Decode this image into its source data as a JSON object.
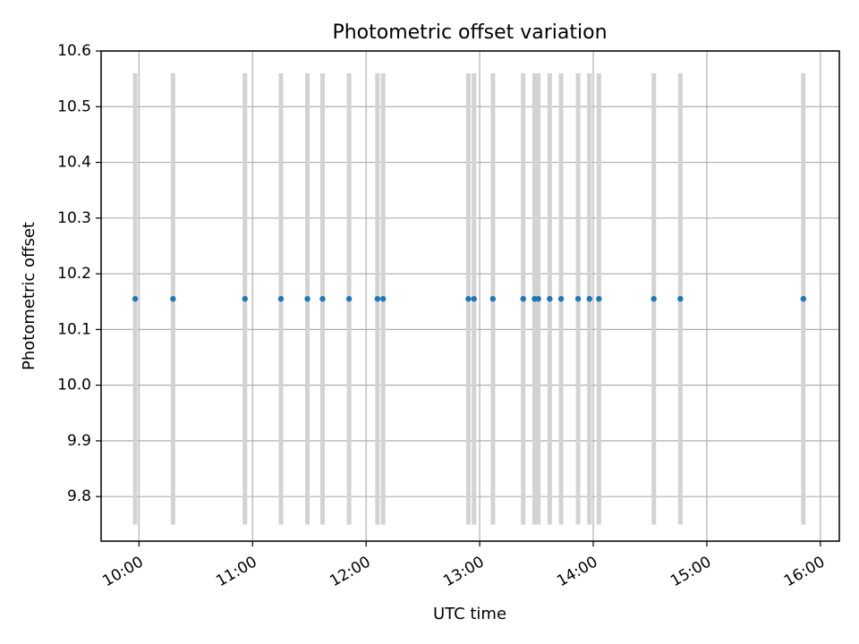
{
  "chart_data": {
    "type": "scatter",
    "title": "Photometric offset variation",
    "xlabel": "UTC time",
    "ylabel": "Photometric offset",
    "xlim": [
      "09:40",
      "16:10"
    ],
    "ylim": [
      9.72,
      10.6
    ],
    "x_ticks": [
      "10:00",
      "11:00",
      "12:00",
      "13:00",
      "14:00",
      "15:00",
      "16:00"
    ],
    "y_ticks": [
      9.8,
      9.9,
      10.0,
      10.1,
      10.2,
      10.3,
      10.4,
      10.5,
      10.6
    ],
    "y_tick_labels": [
      "9.8",
      "9.9",
      "10.0",
      "10.1",
      "10.2",
      "10.3",
      "10.4",
      "10.5",
      "10.6"
    ],
    "grid": true,
    "points": {
      "x": [
        "09:58",
        "10:18",
        "10:56",
        "11:15",
        "11:29",
        "11:37",
        "11:51",
        "12:06",
        "12:09",
        "12:54",
        "12:57",
        "13:07",
        "13:23",
        "13:29",
        "13:31",
        "13:37",
        "13:43",
        "13:52",
        "13:58",
        "14:03",
        "14:32",
        "14:46",
        "15:51"
      ],
      "y": [
        10.155,
        10.155,
        10.155,
        10.155,
        10.155,
        10.155,
        10.155,
        10.155,
        10.155,
        10.155,
        10.155,
        10.155,
        10.155,
        10.155,
        10.155,
        10.155,
        10.155,
        10.155,
        10.155,
        10.155,
        10.155,
        10.155,
        10.155
      ],
      "color": "#1f77b4"
    },
    "vertical_bands": {
      "color": "#d3d3d3",
      "y_range": [
        9.75,
        10.56
      ]
    }
  }
}
